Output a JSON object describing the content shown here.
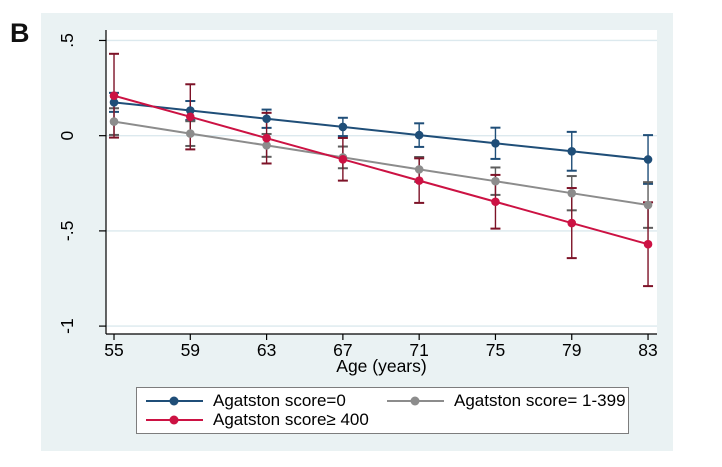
{
  "figure_label": "B",
  "colors": {
    "page_bg": "#ffffff",
    "region_bg": "#eaf2f3",
    "plot_bg": "#ffffff",
    "gridline": "#dce9ee",
    "axis": "#000000",
    "text": "#000000",
    "legend_bg": "#ffffff",
    "legend_border": "#7d7d7d"
  },
  "chart_data": {
    "type": "line",
    "title": "",
    "xlabel": "Age (years)",
    "ylabel": "",
    "grid": true,
    "error_bars": true,
    "legend_position": "bottom",
    "x": [
      55,
      59,
      63,
      67,
      71,
      75,
      79,
      83
    ],
    "x_tick_labels": [
      "55",
      "59",
      "63",
      "67",
      "71",
      "75",
      "79",
      "83"
    ],
    "y_tick_labels": [
      ".5",
      "0",
      "-.5",
      "-1"
    ],
    "y_tick_values": [
      0.5,
      0,
      -0.5,
      -1
    ],
    "xlim": [
      54.58,
      83.47
    ],
    "ylim": [
      -1.0415,
      0.555
    ],
    "series": [
      {
        "name": "Agatston score=0",
        "color": "#1f4e78",
        "ci_color": "#1f4e78",
        "values": [
          0.175,
          0.132,
          0.089,
          0.046,
          0.003,
          -0.04,
          -0.082,
          -0.125
        ],
        "ci_low": [
          0.125,
          0.082,
          0.041,
          -0.002,
          -0.059,
          -0.122,
          -0.184,
          -0.253
        ],
        "ci_high": [
          0.225,
          0.182,
          0.137,
          0.094,
          0.065,
          0.042,
          0.02,
          0.003
        ]
      },
      {
        "name": "Agatston score= 1-399",
        "color": "#8c8c8c",
        "ci_color": "#5d5d5d",
        "values": [
          0.074,
          0.011,
          -0.051,
          -0.114,
          -0.177,
          -0.239,
          -0.302,
          -0.364
        ],
        "ci_low": [
          0.004,
          -0.054,
          -0.111,
          -0.171,
          -0.242,
          -0.311,
          -0.392,
          -0.484
        ],
        "ci_high": [
          0.144,
          0.076,
          0.009,
          -0.057,
          -0.112,
          -0.167,
          -0.212,
          -0.244
        ]
      },
      {
        "name": "Agatston score≥ 400",
        "color": "#cc1243",
        "ci_color": "#7d1227",
        "values": [
          0.21,
          0.099,
          -0.013,
          -0.124,
          -0.236,
          -0.347,
          -0.459,
          -0.57
        ],
        "ci_low": [
          -0.01,
          -0.072,
          -0.146,
          -0.236,
          -0.353,
          -0.488,
          -0.643,
          -0.79
        ],
        "ci_high": [
          0.43,
          0.27,
          0.12,
          -0.012,
          -0.119,
          -0.206,
          -0.275,
          -0.35
        ]
      }
    ]
  }
}
